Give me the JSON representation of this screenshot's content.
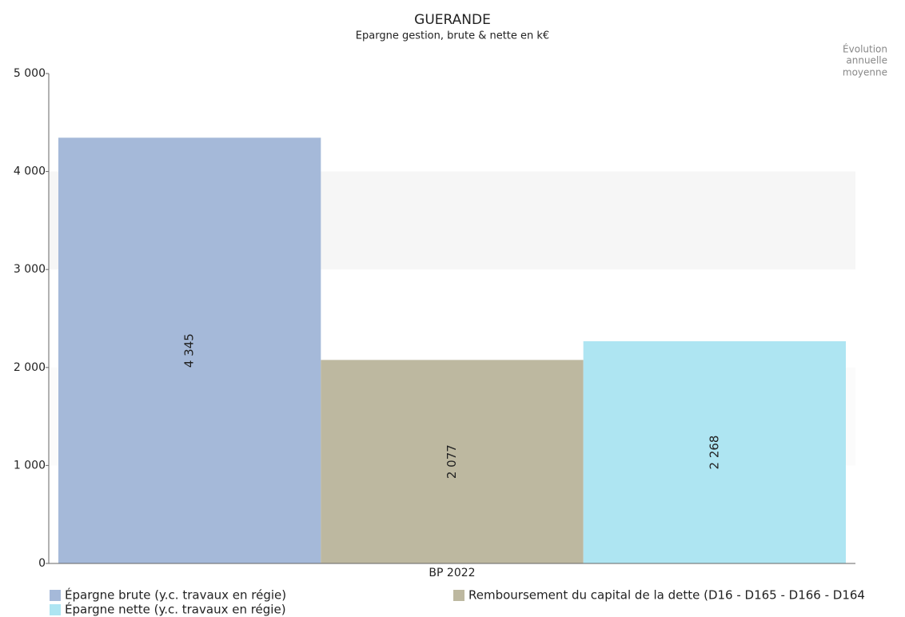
{
  "chart_data": {
    "type": "bar",
    "title": "GUERANDE",
    "subtitle": "Epargne gestion, brute & nette en k€",
    "annotation": [
      "Évolution",
      "annuelle",
      "moyenne"
    ],
    "categories": [
      "BP 2022"
    ],
    "series": [
      {
        "name": "Épargne brute (y.c. travaux en régie)",
        "color": "#a5b9d9",
        "values": [
          4345
        ],
        "value_labels": [
          "4 345"
        ]
      },
      {
        "name": "Remboursement du capital de la dette (D16 - D165 - D166 - D164",
        "color": "#bdb8a0",
        "values": [
          2077
        ],
        "value_labels": [
          "2 077"
        ]
      },
      {
        "name": "Épargne nette (y.c. travaux en régie)",
        "color": "#aee5f2",
        "values": [
          2268
        ],
        "value_labels": [
          "2 268"
        ]
      }
    ],
    "ylim": [
      0,
      5000
    ],
    "yticks": [
      0,
      {
        "value": 1000,
        "label": "1 000"
      },
      {
        "value": 2000,
        "label": "2 000"
      },
      {
        "value": 3000,
        "label": "3 000"
      },
      {
        "value": 4000,
        "label": "4 000"
      },
      {
        "value": 5000,
        "label": "5 000"
      }
    ],
    "grid": "bands",
    "legend": "bottom"
  }
}
